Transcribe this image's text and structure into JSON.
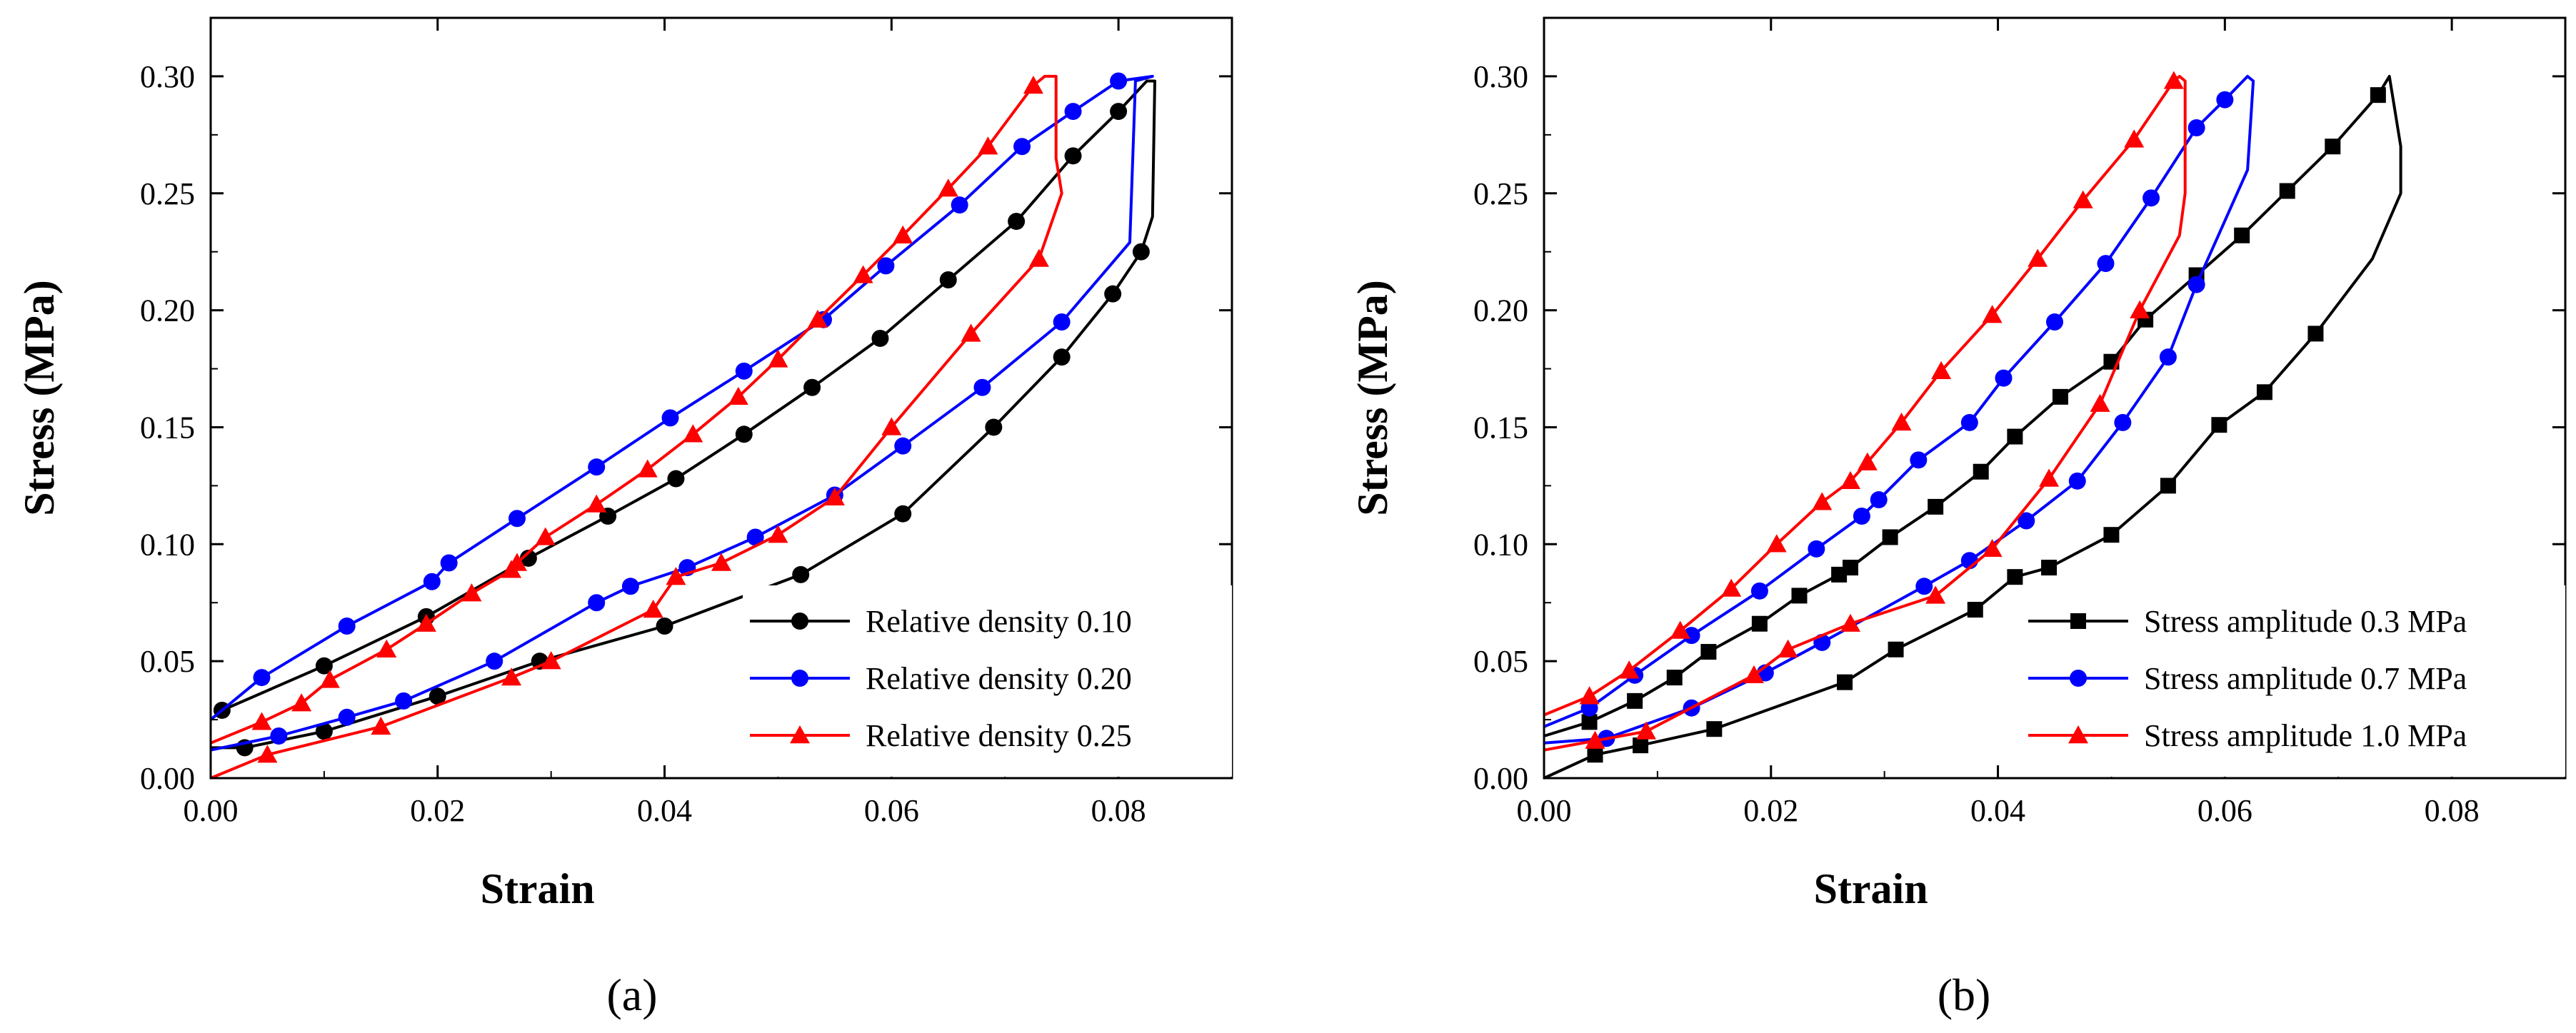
{
  "chart_data": [
    {
      "type": "line",
      "panel_label": "(a)",
      "xlabel": "Strain",
      "ylabel": "Stress (MPa)",
      "xlim": [
        0,
        0.09
      ],
      "ylim": [
        0,
        0.325
      ],
      "x_ticks": [
        0.0,
        0.02,
        0.04,
        0.06,
        0.08
      ],
      "x_tick_labels": [
        "0.00",
        "0.02",
        "0.04",
        "0.06",
        "0.08"
      ],
      "y_ticks": [
        0.0,
        0.05,
        0.1,
        0.15,
        0.2,
        0.25,
        0.3
      ],
      "y_tick_labels": [
        "0.00",
        "0.05",
        "0.10",
        "0.15",
        "0.20",
        "0.25",
        "0.30"
      ],
      "grid": false,
      "legend_position": "bottom-right",
      "series": [
        {
          "name": "Relative density 0.10",
          "color": "#000000",
          "marker": "circle",
          "loading": [
            [
              0.0,
              0.025
            ],
            [
              0.001,
              0.029
            ],
            [
              0.01,
              0.048
            ],
            [
              0.019,
              0.069
            ],
            [
              0.028,
              0.094
            ],
            [
              0.035,
              0.112
            ],
            [
              0.041,
              0.128
            ],
            [
              0.047,
              0.147
            ],
            [
              0.053,
              0.167
            ],
            [
              0.059,
              0.188
            ],
            [
              0.065,
              0.213
            ],
            [
              0.071,
              0.238
            ],
            [
              0.076,
              0.266
            ],
            [
              0.08,
              0.285
            ],
            [
              0.0825,
              0.298
            ]
          ],
          "peak": [
            [
              0.0825,
              0.298
            ],
            [
              0.0832,
              0.298
            ],
            [
              0.083,
              0.24
            ]
          ],
          "unloading": [
            [
              0.083,
              0.24
            ],
            [
              0.082,
              0.225
            ],
            [
              0.0795,
              0.207
            ],
            [
              0.075,
              0.18
            ],
            [
              0.069,
              0.15
            ],
            [
              0.061,
              0.113
            ],
            [
              0.052,
              0.087
            ],
            [
              0.04,
              0.065
            ],
            [
              0.029,
              0.05
            ],
            [
              0.02,
              0.035
            ],
            [
              0.01,
              0.02
            ],
            [
              0.003,
              0.013
            ],
            [
              0.0,
              0.013
            ]
          ]
        },
        {
          "name": "Relative density 0.20",
          "color": "#0000ff",
          "marker": "circle",
          "loading": [
            [
              0.0,
              0.025
            ],
            [
              0.0045,
              0.043
            ],
            [
              0.012,
              0.065
            ],
            [
              0.0195,
              0.084
            ],
            [
              0.021,
              0.092
            ],
            [
              0.027,
              0.111
            ],
            [
              0.034,
              0.133
            ],
            [
              0.0405,
              0.154
            ],
            [
              0.047,
              0.174
            ],
            [
              0.054,
              0.196
            ],
            [
              0.0595,
              0.219
            ],
            [
              0.066,
              0.245
            ],
            [
              0.0715,
              0.27
            ],
            [
              0.076,
              0.285
            ],
            [
              0.08,
              0.298
            ],
            [
              0.083,
              0.3
            ]
          ],
          "peak": [
            [
              0.083,
              0.3
            ],
            [
              0.0815,
              0.298
            ],
            [
              0.081,
              0.229
            ]
          ],
          "unloading": [
            [
              0.081,
              0.229
            ],
            [
              0.075,
              0.195
            ],
            [
              0.068,
              0.167
            ],
            [
              0.061,
              0.142
            ],
            [
              0.055,
              0.121
            ],
            [
              0.048,
              0.103
            ],
            [
              0.042,
              0.09
            ],
            [
              0.037,
              0.082
            ],
            [
              0.034,
              0.075
            ],
            [
              0.025,
              0.05
            ],
            [
              0.017,
              0.033
            ],
            [
              0.012,
              0.026
            ],
            [
              0.006,
              0.018
            ],
            [
              0.0,
              0.012
            ]
          ]
        },
        {
          "name": "Relative density 0.25",
          "color": "#ff0000",
          "marker": "triangle",
          "loading": [
            [
              0.0,
              0.015
            ],
            [
              0.0045,
              0.024
            ],
            [
              0.008,
              0.032
            ],
            [
              0.0105,
              0.042
            ],
            [
              0.0155,
              0.055
            ],
            [
              0.019,
              0.066
            ],
            [
              0.023,
              0.079
            ],
            [
              0.0265,
              0.089
            ],
            [
              0.027,
              0.092
            ],
            [
              0.0295,
              0.103
            ],
            [
              0.034,
              0.117
            ],
            [
              0.0385,
              0.132
            ],
            [
              0.0425,
              0.147
            ],
            [
              0.0465,
              0.163
            ],
            [
              0.05,
              0.179
            ],
            [
              0.0535,
              0.196
            ],
            [
              0.0575,
              0.215
            ],
            [
              0.061,
              0.232
            ],
            [
              0.065,
              0.252
            ],
            [
              0.0685,
              0.27
            ],
            [
              0.0725,
              0.296
            ],
            [
              0.0735,
              0.3
            ]
          ],
          "peak": [
            [
              0.0735,
              0.3
            ],
            [
              0.0745,
              0.3
            ],
            [
              0.0745,
              0.265
            ],
            [
              0.075,
              0.25
            ]
          ],
          "unloading": [
            [
              0.075,
              0.25
            ],
            [
              0.073,
              0.222
            ],
            [
              0.067,
              0.19
            ],
            [
              0.06,
              0.15
            ],
            [
              0.055,
              0.12
            ],
            [
              0.05,
              0.104
            ],
            [
              0.045,
              0.092
            ],
            [
              0.041,
              0.086
            ],
            [
              0.039,
              0.072
            ],
            [
              0.03,
              0.05
            ],
            [
              0.0265,
              0.043
            ],
            [
              0.015,
              0.022
            ],
            [
              0.005,
              0.01
            ],
            [
              0.0,
              0.0
            ]
          ]
        }
      ]
    },
    {
      "type": "line",
      "panel_label": "(b)",
      "xlabel": "Strain",
      "ylabel": "Stress (MPa)",
      "xlim": [
        0,
        0.09
      ],
      "ylim": [
        0,
        0.325
      ],
      "x_ticks": [
        0.0,
        0.02,
        0.04,
        0.06,
        0.08
      ],
      "x_tick_labels": [
        "0.00",
        "0.02",
        "0.04",
        "0.06",
        "0.08"
      ],
      "y_ticks": [
        0.0,
        0.05,
        0.1,
        0.15,
        0.2,
        0.25,
        0.3
      ],
      "y_tick_labels": [
        "0.00",
        "0.05",
        "0.10",
        "0.15",
        "0.20",
        "0.25",
        "0.30"
      ],
      "grid": false,
      "legend_position": "bottom-right",
      "series": [
        {
          "name": "Stress amplitude 0.3 MPa",
          "color": "#000000",
          "marker": "square",
          "loading": [
            [
              0.0,
              0.018
            ],
            [
              0.004,
              0.024
            ],
            [
              0.008,
              0.033
            ],
            [
              0.0115,
              0.043
            ],
            [
              0.0145,
              0.054
            ],
            [
              0.019,
              0.066
            ],
            [
              0.0225,
              0.078
            ],
            [
              0.026,
              0.087
            ],
            [
              0.027,
              0.09
            ],
            [
              0.0305,
              0.103
            ],
            [
              0.0345,
              0.116
            ],
            [
              0.0385,
              0.131
            ],
            [
              0.0415,
              0.146
            ],
            [
              0.0455,
              0.163
            ],
            [
              0.05,
              0.178
            ],
            [
              0.053,
              0.196
            ],
            [
              0.0575,
              0.215
            ],
            [
              0.0615,
              0.232
            ],
            [
              0.0655,
              0.251
            ],
            [
              0.0695,
              0.27
            ],
            [
              0.0735,
              0.292
            ],
            [
              0.0745,
              0.3
            ]
          ],
          "peak": [
            [
              0.0745,
              0.3
            ],
            [
              0.0755,
              0.27
            ],
            [
              0.0755,
              0.25
            ],
            [
              0.073,
              0.222
            ]
          ],
          "unloading": [
            [
              0.073,
              0.222
            ],
            [
              0.068,
              0.19
            ],
            [
              0.0635,
              0.165
            ],
            [
              0.0595,
              0.151
            ],
            [
              0.055,
              0.125
            ],
            [
              0.05,
              0.104
            ],
            [
              0.0445,
              0.09
            ],
            [
              0.0415,
              0.086
            ],
            [
              0.038,
              0.072
            ],
            [
              0.031,
              0.055
            ],
            [
              0.0265,
              0.041
            ],
            [
              0.015,
              0.021
            ],
            [
              0.0085,
              0.014
            ],
            [
              0.0045,
              0.01
            ],
            [
              0.0,
              0.0
            ]
          ]
        },
        {
          "name": "Stress amplitude 0.7 MPa",
          "color": "#0000ff",
          "marker": "circle",
          "loading": [
            [
              0.0,
              0.022
            ],
            [
              0.004,
              0.03
            ],
            [
              0.008,
              0.044
            ],
            [
              0.013,
              0.061
            ],
            [
              0.019,
              0.08
            ],
            [
              0.024,
              0.098
            ],
            [
              0.028,
              0.112
            ],
            [
              0.0295,
              0.119
            ],
            [
              0.033,
              0.136
            ],
            [
              0.0375,
              0.152
            ],
            [
              0.0405,
              0.171
            ],
            [
              0.045,
              0.195
            ],
            [
              0.0495,
              0.22
            ],
            [
              0.0535,
              0.248
            ],
            [
              0.0575,
              0.278
            ],
            [
              0.06,
              0.29
            ],
            [
              0.062,
              0.3
            ]
          ],
          "peak": [
            [
              0.062,
              0.3
            ],
            [
              0.0625,
              0.298
            ],
            [
              0.062,
              0.26
            ]
          ],
          "unloading": [
            [
              0.062,
              0.26
            ],
            [
              0.0575,
              0.211
            ],
            [
              0.055,
              0.18
            ],
            [
              0.051,
              0.152
            ],
            [
              0.047,
              0.127
            ],
            [
              0.0425,
              0.11
            ],
            [
              0.0375,
              0.093
            ],
            [
              0.0335,
              0.082
            ],
            [
              0.0245,
              0.058
            ],
            [
              0.0195,
              0.045
            ],
            [
              0.013,
              0.03
            ],
            [
              0.0055,
              0.017
            ],
            [
              0.0,
              0.015
            ]
          ]
        },
        {
          "name": "Stress amplitude 1.0 MPa",
          "color": "#ff0000",
          "marker": "triangle",
          "loading": [
            [
              0.0,
              0.027
            ],
            [
              0.004,
              0.035
            ],
            [
              0.0075,
              0.046
            ],
            [
              0.012,
              0.063
            ],
            [
              0.0165,
              0.081
            ],
            [
              0.0205,
              0.1
            ],
            [
              0.0245,
              0.118
            ],
            [
              0.027,
              0.127
            ],
            [
              0.0285,
              0.135
            ],
            [
              0.0315,
              0.152
            ],
            [
              0.035,
              0.174
            ],
            [
              0.0395,
              0.198
            ],
            [
              0.0435,
              0.222
            ],
            [
              0.0475,
              0.247
            ],
            [
              0.052,
              0.273
            ],
            [
              0.0555,
              0.298
            ],
            [
              0.056,
              0.3
            ]
          ],
          "peak": [
            [
              0.056,
              0.3
            ],
            [
              0.0565,
              0.298
            ],
            [
              0.0565,
              0.25
            ],
            [
              0.056,
              0.232
            ]
          ],
          "unloading": [
            [
              0.056,
              0.232
            ],
            [
              0.0525,
              0.2
            ],
            [
              0.049,
              0.16
            ],
            [
              0.0445,
              0.128
            ],
            [
              0.0395,
              0.098
            ],
            [
              0.0345,
              0.078
            ],
            [
              0.027,
              0.066
            ],
            [
              0.0215,
              0.055
            ],
            [
              0.0185,
              0.044
            ],
            [
              0.009,
              0.02
            ],
            [
              0.0045,
              0.016
            ],
            [
              0.0,
              0.012
            ]
          ]
        }
      ]
    }
  ]
}
